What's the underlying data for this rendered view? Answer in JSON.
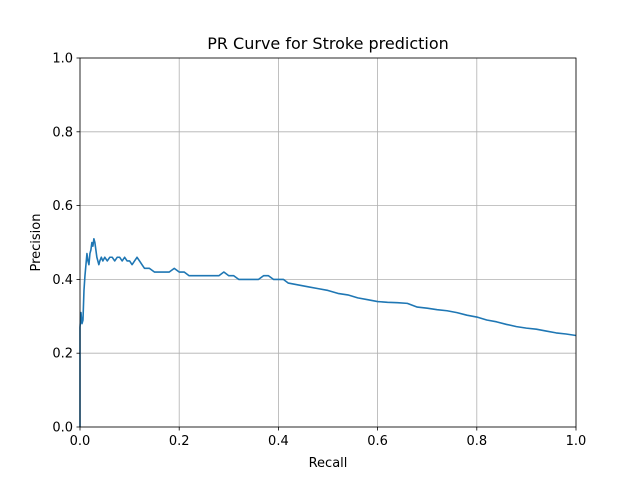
{
  "chart_data": {
    "type": "line",
    "title": "PR Curve for Stroke prediction",
    "xlabel": "Recall",
    "ylabel": "Precision",
    "xlim": [
      0.0,
      1.0
    ],
    "ylim": [
      0.0,
      1.0
    ],
    "xticks": [
      "0.0",
      "0.2",
      "0.4",
      "0.6",
      "0.8",
      "1.0"
    ],
    "yticks": [
      "0.0",
      "0.2",
      "0.4",
      "0.6",
      "0.8",
      "1.0"
    ],
    "grid": true,
    "legend": "none",
    "colors": {
      "line": "#1f77b4",
      "grid": "#b0b0b0",
      "axes": "#000000"
    },
    "series": [
      {
        "x": [
          0.0,
          0.0,
          0.002,
          0.004,
          0.006,
          0.008,
          0.01,
          0.012,
          0.014,
          0.016,
          0.018,
          0.02,
          0.022,
          0.024,
          0.026,
          0.028,
          0.03,
          0.032,
          0.034,
          0.036,
          0.038,
          0.04,
          0.043,
          0.046,
          0.05,
          0.055,
          0.06,
          0.065,
          0.07,
          0.075,
          0.08,
          0.085,
          0.09,
          0.095,
          0.1,
          0.105,
          0.11,
          0.115,
          0.12,
          0.125,
          0.13,
          0.14,
          0.15,
          0.16,
          0.17,
          0.18,
          0.19,
          0.2,
          0.21,
          0.22,
          0.23,
          0.24,
          0.25,
          0.26,
          0.27,
          0.28,
          0.29,
          0.3,
          0.31,
          0.32,
          0.33,
          0.34,
          0.35,
          0.36,
          0.37,
          0.38,
          0.39,
          0.4,
          0.41,
          0.42,
          0.44,
          0.46,
          0.48,
          0.5,
          0.52,
          0.54,
          0.56,
          0.58,
          0.6,
          0.62,
          0.64,
          0.66,
          0.68,
          0.7,
          0.72,
          0.74,
          0.76,
          0.78,
          0.8,
          0.82,
          0.84,
          0.86,
          0.88,
          0.9,
          0.92,
          0.94,
          0.96,
          0.98,
          1.0
        ],
        "y": [
          0.0,
          0.27,
          0.31,
          0.28,
          0.29,
          0.37,
          0.41,
          0.44,
          0.47,
          0.45,
          0.44,
          0.47,
          0.48,
          0.5,
          0.49,
          0.51,
          0.5,
          0.48,
          0.46,
          0.45,
          0.44,
          0.45,
          0.46,
          0.45,
          0.46,
          0.45,
          0.46,
          0.46,
          0.45,
          0.46,
          0.46,
          0.45,
          0.46,
          0.45,
          0.45,
          0.44,
          0.45,
          0.46,
          0.45,
          0.44,
          0.43,
          0.43,
          0.42,
          0.42,
          0.42,
          0.42,
          0.43,
          0.42,
          0.42,
          0.41,
          0.41,
          0.41,
          0.41,
          0.41,
          0.41,
          0.41,
          0.42,
          0.41,
          0.41,
          0.4,
          0.4,
          0.4,
          0.4,
          0.4,
          0.41,
          0.41,
          0.4,
          0.4,
          0.4,
          0.39,
          0.385,
          0.38,
          0.375,
          0.37,
          0.362,
          0.358,
          0.35,
          0.345,
          0.34,
          0.338,
          0.337,
          0.335,
          0.325,
          0.322,
          0.318,
          0.315,
          0.31,
          0.303,
          0.298,
          0.29,
          0.285,
          0.278,
          0.272,
          0.268,
          0.265,
          0.26,
          0.255,
          0.252,
          0.248
        ]
      }
    ]
  }
}
